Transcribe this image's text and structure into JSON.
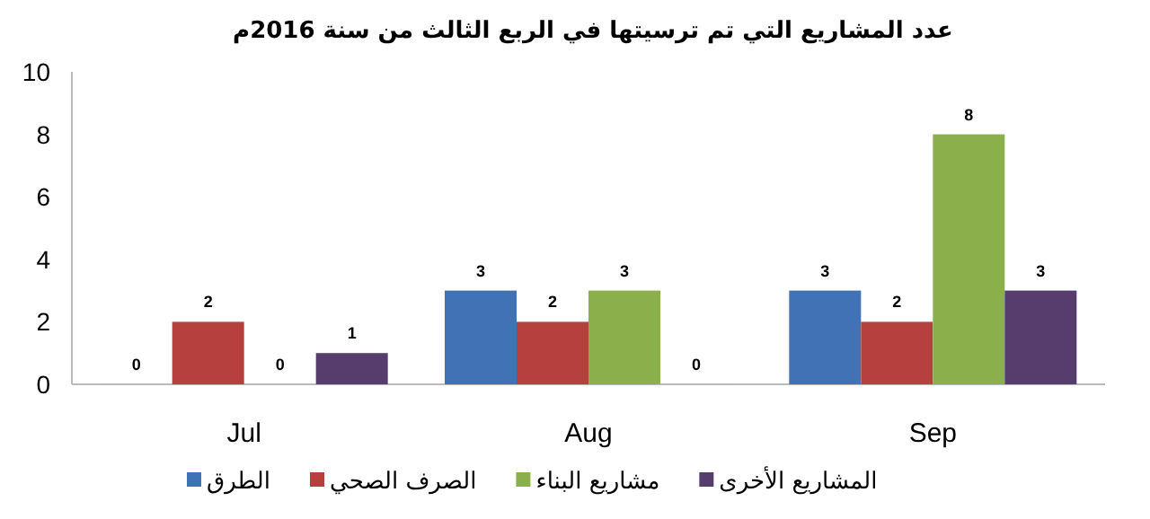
{
  "chart_data": {
    "type": "bar",
    "title": "عدد المشاريع التي تم ترسيتها في الربع الثالث من سنة 2016م",
    "categories": [
      "Jul",
      "Aug",
      "Sep"
    ],
    "series": [
      {
        "name": "الطرق",
        "color": "#4172b6",
        "values": [
          0,
          3,
          3
        ]
      },
      {
        "name": "الصرف الصحي",
        "color": "#b5403d",
        "values": [
          2,
          2,
          2
        ]
      },
      {
        "name": "مشاريع البناء",
        "color": "#8bb04b",
        "values": [
          0,
          3,
          8
        ]
      },
      {
        "name": "المشاريع الأخرى",
        "color": "#573d6e",
        "values": [
          1,
          0,
          3
        ]
      }
    ],
    "ylim": [
      0,
      10
    ],
    "yticks": [
      0,
      2,
      4,
      6,
      8,
      10
    ],
    "data_labels": true,
    "legend": "bottom"
  }
}
